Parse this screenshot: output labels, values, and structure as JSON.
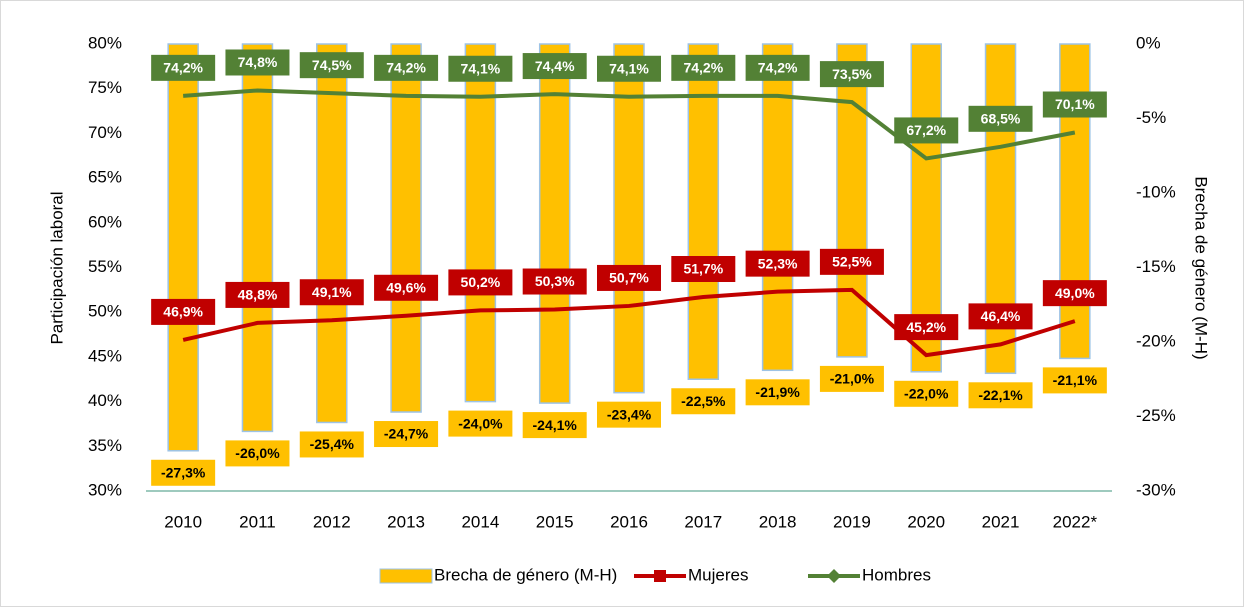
{
  "chart_data": {
    "type": "combo",
    "y_label": "Participación laboral",
    "y2_label": "Brecha de género (M-H)",
    "categories": [
      "2010",
      "2011",
      "2012",
      "2013",
      "2014",
      "2015",
      "2016",
      "2017",
      "2018",
      "2019",
      "2020",
      "2021",
      "2022*"
    ],
    "series": [
      {
        "name": "Brecha de género (M-H)",
        "type": "bar",
        "axis": "y2",
        "color": "#FFC000",
        "values": [
          -27.3,
          -26.0,
          -25.4,
          -24.7,
          -24.0,
          -24.1,
          -23.4,
          -22.5,
          -21.9,
          -21.0,
          -22.0,
          -22.1,
          -21.1
        ],
        "value_labels": [
          "-27,3%",
          "-26,0%",
          "-25,4%",
          "-24,7%",
          "-24,0%",
          "-24,1%",
          "-23,4%",
          "-22,5%",
          "-21,9%",
          "-21,0%",
          "-22,0%",
          "-22,1%",
          "-21,1%"
        ]
      },
      {
        "name": "Mujeres",
        "type": "line",
        "color": "#C00000",
        "values": [
          46.9,
          48.8,
          49.1,
          49.6,
          50.2,
          50.3,
          50.7,
          51.7,
          52.3,
          52.5,
          45.2,
          46.4,
          49.0
        ],
        "value_labels": [
          "46,9%",
          "48,8%",
          "49,1%",
          "49,6%",
          "50,2%",
          "50,3%",
          "50,7%",
          "51,7%",
          "52,3%",
          "52,5%",
          "45,2%",
          "46,4%",
          "49,0%"
        ]
      },
      {
        "name": "Hombres",
        "type": "line",
        "color": "#538135",
        "values": [
          74.2,
          74.8,
          74.5,
          74.2,
          74.1,
          74.4,
          74.1,
          74.2,
          74.2,
          73.5,
          67.2,
          68.5,
          70.1
        ],
        "value_labels": [
          "74,2%",
          "74,8%",
          "74,5%",
          "74,2%",
          "74,1%",
          "74,4%",
          "74,1%",
          "74,2%",
          "74,2%",
          "73,5%",
          "67,2%",
          "68,5%",
          "70,1%"
        ]
      }
    ],
    "ylim": [
      30,
      80
    ],
    "yticks": [
      {
        "value": 30,
        "label": "30%"
      },
      {
        "value": 35,
        "label": "35%"
      },
      {
        "value": 40,
        "label": "40%"
      },
      {
        "value": 45,
        "label": "45%"
      },
      {
        "value": 50,
        "label": "50%"
      },
      {
        "value": 55,
        "label": "55%"
      },
      {
        "value": 60,
        "label": "60%"
      },
      {
        "value": 65,
        "label": "65%"
      },
      {
        "value": 70,
        "label": "70%"
      },
      {
        "value": 75,
        "label": "75%"
      },
      {
        "value": 80,
        "label": "80%"
      }
    ],
    "y2lim": [
      -30,
      0
    ],
    "y2ticks": [
      {
        "value": -30,
        "label": "-30%"
      },
      {
        "value": -25,
        "label": "-25%"
      },
      {
        "value": -20,
        "label": "-20%"
      },
      {
        "value": -15,
        "label": "-15%"
      },
      {
        "value": -10,
        "label": "-10%"
      },
      {
        "value": -5,
        "label": "-5%"
      },
      {
        "value": 0,
        "label": "0%"
      }
    ],
    "legend": "bottom"
  }
}
